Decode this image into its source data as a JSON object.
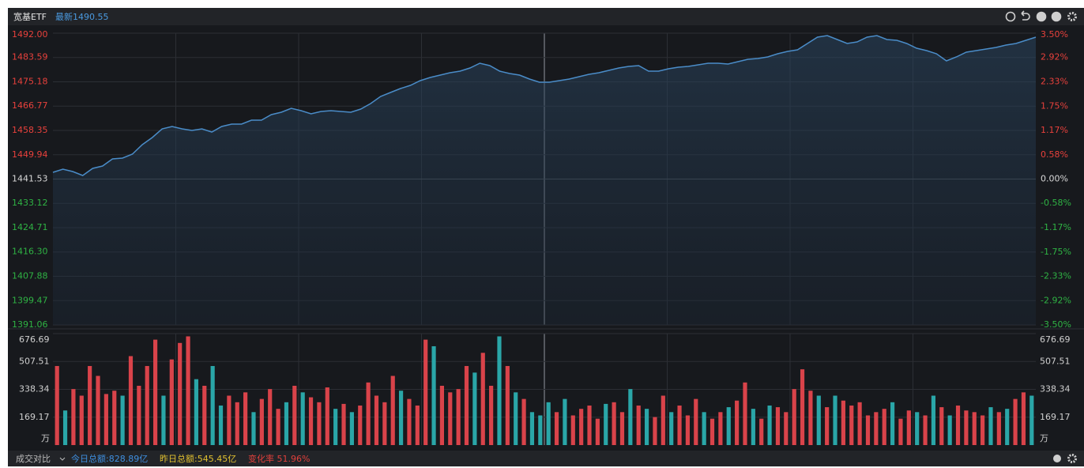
{
  "header": {
    "name": "宽基ETF",
    "latest": "最新1490.55"
  },
  "footer": {
    "compare": "成交对比",
    "today": "今日总额:828.89亿",
    "yesterday": "昨日总额:545.45亿",
    "change": "变化率 51.96%"
  },
  "chart_data": [
    {
      "type": "line",
      "color": "#4a8cc8",
      "grid": true,
      "up_color": "#e8413c",
      "down_color": "#2fb344",
      "flat_color": "#d8d8d8",
      "ylim": [
        1391.06,
        1492.0
      ],
      "yticks": [
        {
          "value": 1492.0,
          "label": "1492.00"
        },
        1483.59,
        1475.18,
        1466.77,
        1458.35,
        1449.94,
        1441.53,
        1433.12,
        1424.71,
        {
          "value": 1416.3,
          "label": "1416.30"
        },
        1407.88,
        1399.47,
        1391.06
      ],
      "y2lim": [
        -3.5,
        3.5
      ],
      "y2ticks": [
        {
          "value": 3.5,
          "label": "3.50%"
        },
        {
          "value": 2.92,
          "label": "2.92%"
        },
        {
          "value": 2.33,
          "label": "2.33%"
        },
        {
          "value": 1.75,
          "label": "1.75%"
        },
        {
          "value": 1.17,
          "label": "1.17%"
        },
        {
          "value": 0.58,
          "label": "0.58%"
        },
        {
          "value": 0.0,
          "label": "0.00%"
        },
        {
          "value": -0.58,
          "label": "-0.58%"
        },
        {
          "value": -1.17,
          "label": "-1.17%"
        },
        {
          "value": -1.75,
          "label": "-1.75%"
        },
        {
          "value": -2.33,
          "label": "-2.33%"
        },
        {
          "value": -2.92,
          "label": "-2.92%"
        },
        {
          "value": -3.5,
          "label": "-3.50%"
        }
      ],
      "values": [
        1443.86,
        1444.95,
        1444.13,
        1442.76,
        1445.22,
        1446.04,
        1448.51,
        1448.78,
        1450.15,
        1453.43,
        1455.89,
        1458.9,
        1459.72,
        1458.9,
        1458.35,
        1458.9,
        1457.81,
        1459.72,
        1460.54,
        1460.54,
        1461.91,
        1461.91,
        1463.82,
        1464.64,
        1466.01,
        1465.19,
        1464.1,
        1464.92,
        1465.19,
        1464.92,
        1464.64,
        1465.74,
        1467.65,
        1470.12,
        1471.48,
        1472.85,
        1473.95,
        1475.59,
        1476.68,
        1477.5,
        1478.32,
        1478.87,
        1479.96,
        1481.61,
        1480.78,
        1478.87,
        1478.05,
        1477.5,
        1476.13,
        1475.04,
        1475.04,
        1475.59,
        1476.13,
        1476.95,
        1477.78,
        1478.32,
        1479.14,
        1479.96,
        1480.51,
        1480.78,
        1478.87,
        1478.87,
        1479.69,
        1480.24,
        1480.51,
        1481.06,
        1481.61,
        1481.61,
        1481.33,
        1482.15,
        1482.97,
        1483.25,
        1483.79,
        1484.89,
        1485.71,
        1486.26,
        1488.44,
        1490.63,
        1491.18,
        1489.81,
        1488.44,
        1488.99,
        1490.63,
        1491.18,
        1489.81,
        1489.54,
        1488.44,
        1486.8,
        1485.98,
        1484.89,
        1482.43,
        1483.79,
        1485.43,
        1485.98,
        1486.53,
        1487.08,
        1487.9,
        1488.44,
        1489.54,
        1490.63
      ]
    },
    {
      "type": "bar",
      "unit": "万",
      "ylim": [
        0,
        676.69
      ],
      "yticks": [
        169.17,
        338.34,
        507.51,
        676.69
      ],
      "values": [
        480,
        210,
        340,
        300,
        480,
        420,
        310,
        330,
        300,
        540,
        360,
        480,
        640,
        300,
        520,
        620,
        660,
        400,
        360,
        480,
        240,
        300,
        260,
        320,
        200,
        280,
        340,
        220,
        260,
        360,
        320,
        290,
        260,
        350,
        220,
        250,
        200,
        240,
        380,
        300,
        260,
        420,
        330,
        280,
        240,
        640,
        600,
        360,
        320,
        340,
        480,
        440,
        560,
        360,
        660,
        480,
        320,
        280,
        200,
        180,
        260,
        200,
        280,
        180,
        220,
        240,
        160,
        250,
        260,
        200,
        340,
        240,
        220,
        170,
        300,
        200,
        240,
        180,
        280,
        200,
        160,
        200,
        230,
        270,
        380,
        220,
        160,
        240,
        230,
        200,
        340,
        460,
        330,
        300,
        230,
        300,
        270,
        240,
        260,
        180,
        200,
        220,
        260,
        160,
        210,
        200,
        180,
        300,
        230,
        180,
        240,
        210,
        200,
        180,
        230,
        200,
        220,
        280,
        320,
        300
      ],
      "colors": [
        "#d9434a",
        "#2aa6a8",
        "#d9434a",
        "#d9434a",
        "#d9434a",
        "#d9434a",
        "#d9434a",
        "#d9434a",
        "#2aa6a8",
        "#d9434a",
        "#d9434a",
        "#d9434a",
        "#d9434a",
        "#2aa6a8",
        "#d9434a",
        "#d9434a",
        "#d9434a",
        "#2aa6a8",
        "#d9434a",
        "#2aa6a8",
        "#2aa6a8",
        "#d9434a",
        "#d9434a",
        "#d9434a",
        "#2aa6a8",
        "#d9434a",
        "#d9434a",
        "#d9434a",
        "#2aa6a8",
        "#d9434a",
        "#2aa6a8",
        "#d9434a",
        "#d9434a",
        "#d9434a",
        "#2aa6a8",
        "#d9434a",
        "#2aa6a8",
        "#d9434a",
        "#d9434a",
        "#d9434a",
        "#d9434a",
        "#d9434a",
        "#2aa6a8",
        "#d9434a",
        "#d9434a",
        "#d9434a",
        "#2aa6a8",
        "#d9434a",
        "#d9434a",
        "#d9434a",
        "#d9434a",
        "#2aa6a8",
        "#d9434a",
        "#d9434a",
        "#2aa6a8",
        "#d9434a",
        "#2aa6a8",
        "#d9434a",
        "#2aa6a8",
        "#2aa6a8",
        "#2aa6a8",
        "#d9434a",
        "#2aa6a8",
        "#d9434a",
        "#d9434a",
        "#d9434a",
        "#d9434a",
        "#2aa6a8",
        "#d9434a",
        "#d9434a",
        "#2aa6a8",
        "#d9434a",
        "#2aa6a8",
        "#d9434a",
        "#d9434a",
        "#2aa6a8",
        "#d9434a",
        "#d9434a",
        "#d9434a",
        "#2aa6a8",
        "#d9434a",
        "#d9434a",
        "#2aa6a8",
        "#d9434a",
        "#d9434a",
        "#2aa6a8",
        "#d9434a",
        "#2aa6a8",
        "#d9434a",
        "#d9434a",
        "#d9434a",
        "#d9434a",
        "#d9434a",
        "#2aa6a8",
        "#d9434a",
        "#2aa6a8",
        "#d9434a",
        "#d9434a",
        "#d9434a",
        "#d9434a",
        "#d9434a",
        "#d9434a",
        "#2aa6a8",
        "#d9434a",
        "#d9434a",
        "#2aa6a8",
        "#d9434a",
        "#2aa6a8",
        "#d9434a",
        "#2aa6a8",
        "#d9434a",
        "#d9434a",
        "#d9434a",
        "#d9434a",
        "#2aa6a8",
        "#d9434a",
        "#2aa6a8",
        "#d9434a",
        "#d9434a",
        "#2aa6a8"
      ]
    }
  ]
}
